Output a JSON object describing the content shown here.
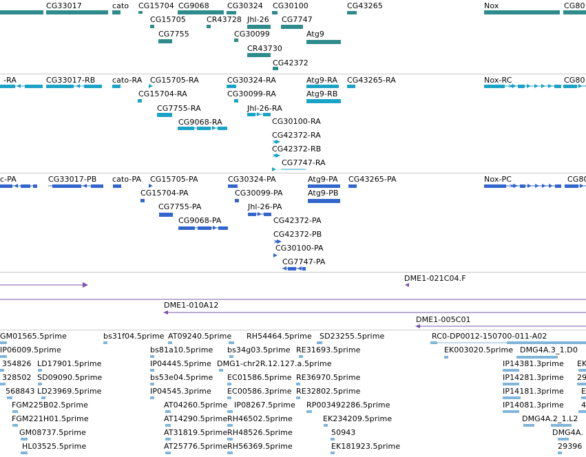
{
  "colors": {
    "gene": "#2e8b8b",
    "transcript": "#1aa3c6",
    "protein": "#3366cc",
    "clone": "#7b55a8",
    "est": "#7fb5da",
    "separator": "#c8c8c8"
  },
  "genes": {
    "labels": [
      "CG33017",
      "cato",
      "CG15704",
      "CG9068",
      "CG30324",
      "CG30100",
      "CG43265",
      "Nox",
      "CG80",
      "CG15705",
      "CR43728",
      "Jhl-26",
      "CG7747",
      "CG7755",
      "CG30099",
      "Atg9",
      "CR43730",
      "CG42372"
    ]
  },
  "transcripts": {
    "labels": [
      "-RA",
      "CG33017-RB",
      "cato-RA",
      "CG15705-RA",
      "CG30324-RA",
      "Atg9-RA",
      "CG43265-RA",
      "Nox-RC",
      "CG80",
      "CG15704-RA",
      "CG30099-RA",
      "Atg9-RB",
      "CG7755-RA",
      "Jhl-26-RA",
      "CG9068-RA",
      "CG30100-RA",
      "CG42372-RA",
      "CG42372-RB",
      "CG7747-RA"
    ]
  },
  "proteins": {
    "labels": [
      "c-PA",
      "CG33017-PB",
      "cato-PA",
      "CG15705-PA",
      "CG30324-PA",
      "Atg9-PA",
      "CG43265-PA",
      "Nox-PC",
      "CG80",
      "CG15704-PA",
      "CG30099-PA",
      "Atg9-PB",
      "CG7755-PA",
      "Jhl-26-PA",
      "CG9068-PA",
      "CG42372-PA",
      "CG42372-PB",
      "CG30100-PA",
      "CG7747-PA"
    ]
  },
  "clones": {
    "labels": [
      "DME1-021C04.F",
      "DME1-010A12",
      "DME1-005C01"
    ]
  },
  "ests": {
    "labels": [
      "GM01565.5prime",
      "bs31f04.5prime",
      "AT09240.5prime",
      "RH54464.5prime",
      "SD23255.5prime",
      "RC0-DP0012-150700-011-A02",
      "IP06009.5prime",
      "bs81a10.5prime",
      "bs34g03.5prime",
      "RE31693.5prime",
      "EK003020.5prime",
      "DMG4A.3_1.D0",
      "354826",
      "LD17901.5prime",
      "IP04445.5prime",
      "DMG1-chr2R.12.127.a.5prime",
      "IP14381.3prime",
      "EK",
      "328502",
      "SD09090.5prime",
      "bs53e04.5prime",
      "EC01586.5prime",
      "RE36970.5prime",
      "IP14281.3prime",
      "29",
      "568843",
      "LD23969.5prime",
      "IP04545.3prime",
      "EC00586.3prime",
      "RE32802.5prime",
      "IP14181.3prime",
      "E",
      "FGM225B02.5prime",
      "AT04260.5prime",
      "IP08267.5prime",
      "RP003492286.5prime",
      "IP14081.3prime",
      "4",
      "FGM221H01.5prime",
      "AT14290.5prime",
      "RH46502.5prime",
      "EK234209.5prime",
      "DMG4A.2_1.L2",
      "GM08737.5prime",
      "AT31819.5prime",
      "RH48526.5prime",
      "50943",
      "DMG4A.",
      "HL03525.5prime",
      "AT25776.5prime",
      "RH56369.5prime",
      "EK181923.5prime",
      "29396"
    ]
  }
}
